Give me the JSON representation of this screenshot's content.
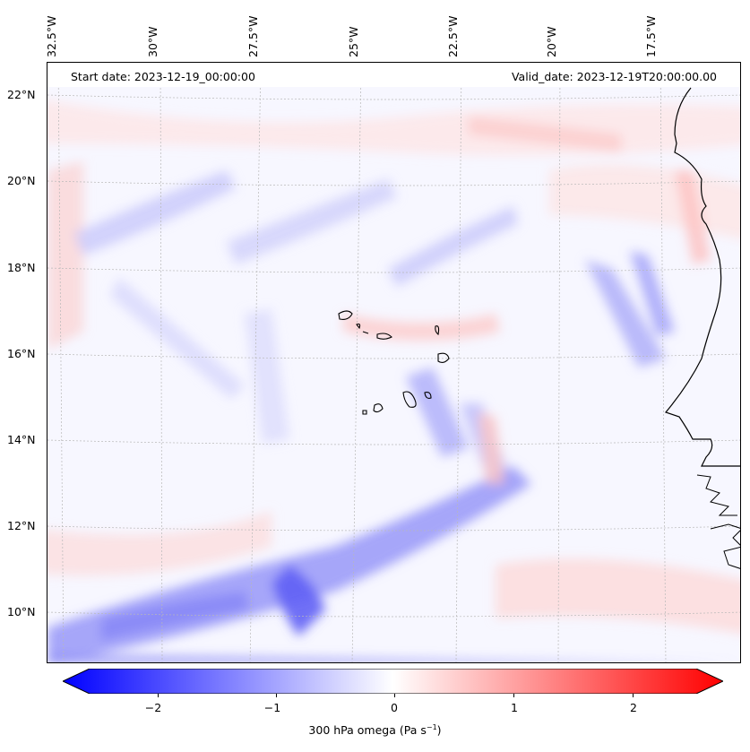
{
  "info": {
    "start_date": "Start date: 2023-12-19_00:00:00",
    "valid_date": "Valid_date: 2023-12-19T20:00:00.00"
  },
  "lon_labels": [
    "32.5°W",
    "30°W",
    "27.5°W",
    "25°W",
    "22.5°W",
    "20°W",
    "17.5°W"
  ],
  "lat_labels": [
    "22°N",
    "20°N",
    "18°N",
    "16°N",
    "14°N",
    "12°N",
    "10°N"
  ],
  "colorbar": {
    "label": "300 hPa omega (Pa s",
    "label_exp": "−1",
    "label_end": ")",
    "ticks": [
      "−2",
      "−1",
      "0",
      "1",
      "2"
    ],
    "min_color": "#0000ff",
    "mid_color": "#ffffff",
    "max_color": "#ff0000"
  }
}
